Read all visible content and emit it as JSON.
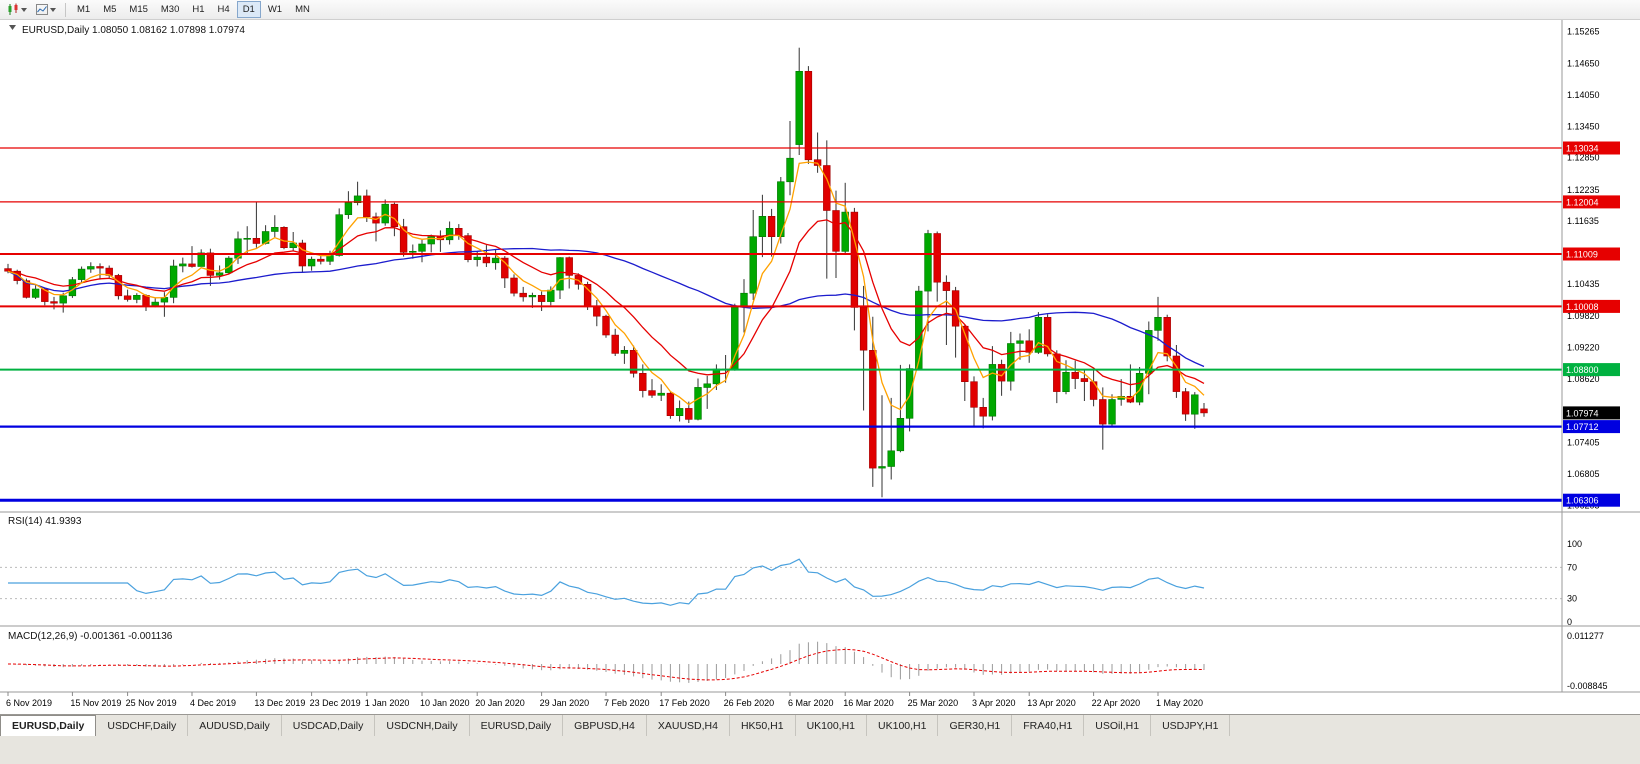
{
  "toolbar": {
    "timeframes": [
      "M1",
      "M5",
      "M15",
      "M30",
      "H1",
      "H4",
      "D1",
      "W1",
      "MN"
    ],
    "selected_timeframe": "D1"
  },
  "chart": {
    "title": "EURUSD,Daily 1.08050 1.08162 1.07898 1.07974",
    "ohlc_display": {
      "open": "1.08050",
      "high": "1.08162",
      "low": "1.07898",
      "close": "1.07974"
    },
    "price_axis_labels": [
      "1.15265",
      "1.14650",
      "1.14050",
      "1.13450",
      "1.12850",
      "1.12235",
      "1.11635",
      "1.11035",
      "1.10435",
      "1.09820",
      "1.09220",
      "1.08620",
      "1.08020",
      "1.07405",
      "1.06805",
      "1.06205"
    ],
    "hlines": [
      {
        "price": 1.13034,
        "label": "1.13034",
        "color": "#e60000",
        "width": 1.3
      },
      {
        "price": 1.12004,
        "label": "1.12004",
        "color": "#e60000",
        "width": 1.3
      },
      {
        "price": 1.11009,
        "label": "1.11009",
        "color": "#e60000",
        "width": 2
      },
      {
        "price": 1.10008,
        "label": "1.10008",
        "color": "#e60000",
        "width": 2
      },
      {
        "price": 1.088,
        "label": "1.08800",
        "color": "#00b140",
        "width": 2
      },
      {
        "price": 1.07712,
        "label": "1.07712",
        "color": "#0000e0",
        "width": 2.2
      },
      {
        "price": 1.06306,
        "label": "1.06306",
        "color": "#0000e0",
        "width": 3
      }
    ],
    "current_price": {
      "label": "1.07974",
      "price": 1.07974,
      "bg": "#000000"
    },
    "moving_averages": [
      {
        "type": "sma",
        "period": 40,
        "color": "#1c1ccd"
      },
      {
        "type": "ema",
        "period": 13,
        "color": "#e60000"
      },
      {
        "type": "ema",
        "period": 5,
        "color": "#ffa200"
      }
    ],
    "x_labels": [
      {
        "text": "6 Nov 2019",
        "index": 0
      },
      {
        "text": "15 Nov 2019",
        "index": 7
      },
      {
        "text": "25 Nov 2019",
        "index": 13
      },
      {
        "text": "4 Dec 2019",
        "index": 20
      },
      {
        "text": "13 Dec 2019",
        "index": 27
      },
      {
        "text": "23 Dec 2019",
        "index": 33
      },
      {
        "text": "1 Jan 2020",
        "index": 39
      },
      {
        "text": "10 Jan 2020",
        "index": 45
      },
      {
        "text": "20 Jan 2020",
        "index": 51
      },
      {
        "text": "29 Jan 2020",
        "index": 58
      },
      {
        "text": "7 Feb 2020",
        "index": 65
      },
      {
        "text": "17 Feb 2020",
        "index": 71
      },
      {
        "text": "26 Feb 2020",
        "index": 78
      },
      {
        "text": "6 Mar 2020",
        "index": 85
      },
      {
        "text": "16 Mar 2020",
        "index": 91
      },
      {
        "text": "25 Mar 2020",
        "index": 98
      },
      {
        "text": "3 Apr 2020",
        "index": 105
      },
      {
        "text": "13 Apr 2020",
        "index": 111
      },
      {
        "text": "22 Apr 2020",
        "index": 118
      },
      {
        "text": "1 May 2020",
        "index": 125
      }
    ]
  },
  "rsi": {
    "label": "RSI(14) 41.9393",
    "period": 14,
    "levels": [
      "100",
      "70",
      "30",
      "0"
    ],
    "line_color": "#4aa1de"
  },
  "macd": {
    "label": "MACD(12,26,9) -0.001361 -0.001136",
    "params": [
      12,
      26,
      9
    ],
    "scale_labels": [
      "0.011277",
      "-0.008845"
    ],
    "histogram_color": "#9a9a9a",
    "signal_color": "#e60000"
  },
  "tabbar": {
    "active_index": 0,
    "tabs": [
      "EURUSD,Daily",
      "USDCHF,Daily",
      "AUDUSD,Daily",
      "USDCAD,Daily",
      "USDCNH,Daily",
      "EURUSD,Daily",
      "GBPUSD,H4",
      "XAUUSD,H4",
      "HK50,H1",
      "UK100,H1",
      "UK100,H1",
      "GER30,H1",
      "FRA40,H1",
      "USOil,H1",
      "USDJPY,H1"
    ]
  },
  "chart_data": {
    "type": "candlestick",
    "symbol": "EURUSD",
    "timeframe": "Daily",
    "y_range": [
      1.0608,
      1.1548
    ],
    "x_range_dates": [
      "6 Nov 2019",
      "8 May 2020"
    ],
    "colors": {
      "up": "#00a800",
      "down": "#e00000",
      "up_border": "#007700",
      "down_border": "#a00000",
      "wick": "#333333"
    },
    "ohlc": [
      [
        1.1073,
        1.1082,
        1.1064,
        1.1068
      ],
      [
        1.1068,
        1.1071,
        1.1043,
        1.105
      ],
      [
        1.105,
        1.1054,
        1.1016,
        1.1018
      ],
      [
        1.1018,
        1.1041,
        1.1015,
        1.1034
      ],
      [
        1.1034,
        1.1037,
        1.1003,
        1.101
      ],
      [
        1.101,
        1.1019,
        1.0995,
        1.1007
      ],
      [
        1.1007,
        1.1027,
        1.0989,
        1.1021
      ],
      [
        1.1021,
        1.1057,
        1.1017,
        1.1052
      ],
      [
        1.1052,
        1.1077,
        1.1045,
        1.1072
      ],
      [
        1.1072,
        1.1085,
        1.1065,
        1.1077
      ],
      [
        1.1077,
        1.1083,
        1.1052,
        1.1074
      ],
      [
        1.1074,
        1.1079,
        1.1053,
        1.106
      ],
      [
        1.106,
        1.1063,
        1.1014,
        1.1021
      ],
      [
        1.1021,
        1.1033,
        1.101,
        1.1014
      ],
      [
        1.1014,
        1.1026,
        1.1007,
        1.1022
      ],
      [
        1.1022,
        1.1024,
        1.0992,
        1.1001
      ],
      [
        1.1001,
        1.1016,
        1.0999,
        1.1009
      ],
      [
        1.1009,
        1.1028,
        1.0981,
        1.1018
      ],
      [
        1.1018,
        1.109,
        1.1007,
        1.1078
      ],
      [
        1.1078,
        1.1094,
        1.1066,
        1.1082
      ],
      [
        1.1082,
        1.1116,
        1.1075,
        1.1077
      ],
      [
        1.1077,
        1.111,
        1.1077,
        1.1103
      ],
      [
        1.1103,
        1.1111,
        1.104,
        1.106
      ],
      [
        1.106,
        1.1079,
        1.1052,
        1.1065
      ],
      [
        1.1065,
        1.1097,
        1.1063,
        1.1093
      ],
      [
        1.1093,
        1.1144,
        1.1082,
        1.113
      ],
      [
        1.113,
        1.1154,
        1.1102,
        1.1131
      ],
      [
        1.1131,
        1.12,
        1.1113,
        1.1121
      ],
      [
        1.1121,
        1.1156,
        1.1119,
        1.1144
      ],
      [
        1.1144,
        1.1175,
        1.1133,
        1.1152
      ],
      [
        1.1152,
        1.1154,
        1.111,
        1.1113
      ],
      [
        1.1113,
        1.1143,
        1.1107,
        1.1122
      ],
      [
        1.1122,
        1.1128,
        1.1066,
        1.1078
      ],
      [
        1.1078,
        1.1096,
        1.1069,
        1.1091
      ],
      [
        1.1091,
        1.1098,
        1.1081,
        1.1087
      ],
      [
        1.1087,
        1.1107,
        1.108,
        1.1098
      ],
      [
        1.1098,
        1.1188,
        1.1096,
        1.1176
      ],
      [
        1.1176,
        1.1221,
        1.1168,
        1.1199
      ],
      [
        1.1199,
        1.1239,
        1.1194,
        1.1212
      ],
      [
        1.1212,
        1.1224,
        1.1162,
        1.1172
      ],
      [
        1.1172,
        1.118,
        1.1125,
        1.116
      ],
      [
        1.116,
        1.1205,
        1.1155,
        1.1196
      ],
      [
        1.1196,
        1.1199,
        1.1135,
        1.1153
      ],
      [
        1.1153,
        1.1168,
        1.1096,
        1.1104
      ],
      [
        1.1104,
        1.1119,
        1.1092,
        1.1106
      ],
      [
        1.1106,
        1.1128,
        1.1085,
        1.112
      ],
      [
        1.112,
        1.1138,
        1.1104,
        1.1134
      ],
      [
        1.1134,
        1.1146,
        1.1105,
        1.1128
      ],
      [
        1.1128,
        1.1163,
        1.1119,
        1.115
      ],
      [
        1.115,
        1.1158,
        1.1128,
        1.1136
      ],
      [
        1.1136,
        1.1141,
        1.1085,
        1.109
      ],
      [
        1.109,
        1.1105,
        1.1077,
        1.1095
      ],
      [
        1.1095,
        1.1118,
        1.1076,
        1.1084
      ],
      [
        1.1084,
        1.1109,
        1.1071,
        1.1093
      ],
      [
        1.1093,
        1.1097,
        1.1036,
        1.1055
      ],
      [
        1.1055,
        1.1062,
        1.102,
        1.1026
      ],
      [
        1.1026,
        1.1038,
        1.101,
        1.1019
      ],
      [
        1.1019,
        1.1027,
        1.0998,
        1.1022
      ],
      [
        1.1022,
        1.1029,
        1.0992,
        1.101
      ],
      [
        1.101,
        1.1039,
        1.1003,
        1.1032
      ],
      [
        1.1032,
        1.1095,
        1.1015,
        1.1094
      ],
      [
        1.1094,
        1.1096,
        1.1035,
        1.106
      ],
      [
        1.106,
        1.1064,
        1.1033,
        1.1043
      ],
      [
        1.1043,
        1.1048,
        1.0994,
        1.1
      ],
      [
        1.1,
        1.1013,
        1.0963,
        1.0982
      ],
      [
        1.0982,
        1.0985,
        1.0941,
        1.0946
      ],
      [
        1.0946,
        1.0958,
        1.0906,
        1.0911
      ],
      [
        1.0911,
        1.0925,
        1.0891,
        1.0917
      ],
      [
        1.0917,
        1.0926,
        1.0865,
        1.0873
      ],
      [
        1.0873,
        1.089,
        1.0827,
        1.084
      ],
      [
        1.084,
        1.0862,
        1.0826,
        1.0831
      ],
      [
        1.0831,
        1.0852,
        1.082,
        1.0835
      ],
      [
        1.0835,
        1.0839,
        1.0786,
        1.0792
      ],
      [
        1.0792,
        1.0821,
        1.0781,
        1.0806
      ],
      [
        1.0806,
        1.0819,
        1.0778,
        1.0785
      ],
      [
        1.0785,
        1.0863,
        1.0783,
        1.0846
      ],
      [
        1.0846,
        1.0868,
        1.0805,
        1.0853
      ],
      [
        1.0853,
        1.089,
        1.0841,
        1.0881
      ],
      [
        1.0881,
        1.0908,
        1.0855,
        1.088
      ],
      [
        1.088,
        1.1006,
        1.0878,
        1.0999
      ],
      [
        1.0999,
        1.1053,
        1.0951,
        1.1026
      ],
      [
        1.1026,
        1.1185,
        1.1013,
        1.1134
      ],
      [
        1.1134,
        1.1214,
        1.1095,
        1.1173
      ],
      [
        1.1173,
        1.1187,
        1.1096,
        1.1134
      ],
      [
        1.1134,
        1.1248,
        1.1121,
        1.1239
      ],
      [
        1.1239,
        1.1355,
        1.1213,
        1.1284
      ],
      [
        1.131,
        1.1495,
        1.129,
        1.145
      ],
      [
        1.145,
        1.146,
        1.1273,
        1.1281
      ],
      [
        1.1281,
        1.1333,
        1.1256,
        1.127
      ],
      [
        1.127,
        1.1318,
        1.1054,
        1.1184
      ],
      [
        1.1184,
        1.1222,
        1.1055,
        1.1106
      ],
      [
        1.1106,
        1.1237,
        1.11,
        1.1181
      ],
      [
        1.1181,
        1.1189,
        1.0955,
        1.0999
      ],
      [
        1.0999,
        1.104,
        1.0802,
        1.0917
      ],
      [
        1.0917,
        1.0981,
        1.0656,
        1.0692
      ],
      [
        1.0692,
        1.0831,
        1.0636,
        1.0695
      ],
      [
        1.0695,
        1.0826,
        1.067,
        1.0725
      ],
      [
        1.0725,
        1.0889,
        1.0722,
        1.0787
      ],
      [
        1.0787,
        1.089,
        1.0762,
        1.0882
      ],
      [
        1.0882,
        1.104,
        1.088,
        1.103
      ],
      [
        1.103,
        1.1147,
        1.0953,
        1.114
      ],
      [
        1.114,
        1.1144,
        1.101,
        1.1047
      ],
      [
        1.1047,
        1.106,
        1.0927,
        1.1031
      ],
      [
        1.1031,
        1.1038,
        1.0903,
        1.0963
      ],
      [
        1.0963,
        1.0966,
        1.082,
        1.0857
      ],
      [
        1.0857,
        1.0867,
        1.0772,
        1.0808
      ],
      [
        1.0808,
        1.0826,
        1.0768,
        1.0791
      ],
      [
        1.0791,
        1.0925,
        1.0783,
        1.089
      ],
      [
        1.089,
        1.0899,
        1.083,
        1.0858
      ],
      [
        1.0858,
        1.0952,
        1.084,
        1.093
      ],
      [
        1.093,
        1.0949,
        1.0899,
        1.0935
      ],
      [
        1.0935,
        1.0957,
        1.0893,
        1.0913
      ],
      [
        1.0913,
        1.099,
        1.091,
        1.098
      ],
      [
        1.098,
        1.0986,
        1.0905,
        1.091
      ],
      [
        1.091,
        1.0917,
        1.0816,
        1.0838
      ],
      [
        1.0838,
        1.0898,
        1.0833,
        1.0875
      ],
      [
        1.0875,
        1.0897,
        1.0843,
        1.0863
      ],
      [
        1.0863,
        1.088,
        1.082,
        1.0857
      ],
      [
        1.0857,
        1.0884,
        1.081,
        1.0823
      ],
      [
        1.0823,
        1.0846,
        1.0727,
        1.0776
      ],
      [
        1.0776,
        1.0833,
        1.0771,
        1.0823
      ],
      [
        1.0823,
        1.0862,
        1.0811,
        1.0829
      ],
      [
        1.0829,
        1.089,
        1.0816,
        1.0818
      ],
      [
        1.0818,
        1.0885,
        1.0812,
        1.0873
      ],
      [
        1.0873,
        1.0972,
        1.0833,
        1.0955
      ],
      [
        1.0955,
        1.1019,
        1.0935,
        1.098
      ],
      [
        1.098,
        1.0985,
        1.0896,
        1.0906
      ],
      [
        1.0906,
        1.0927,
        1.0826,
        1.0838
      ],
      [
        1.0838,
        1.0845,
        1.0782,
        1.0795
      ],
      [
        1.0795,
        1.0837,
        1.0767,
        1.0832
      ],
      [
        1.0805,
        1.08162,
        1.07898,
        1.07974
      ]
    ]
  }
}
